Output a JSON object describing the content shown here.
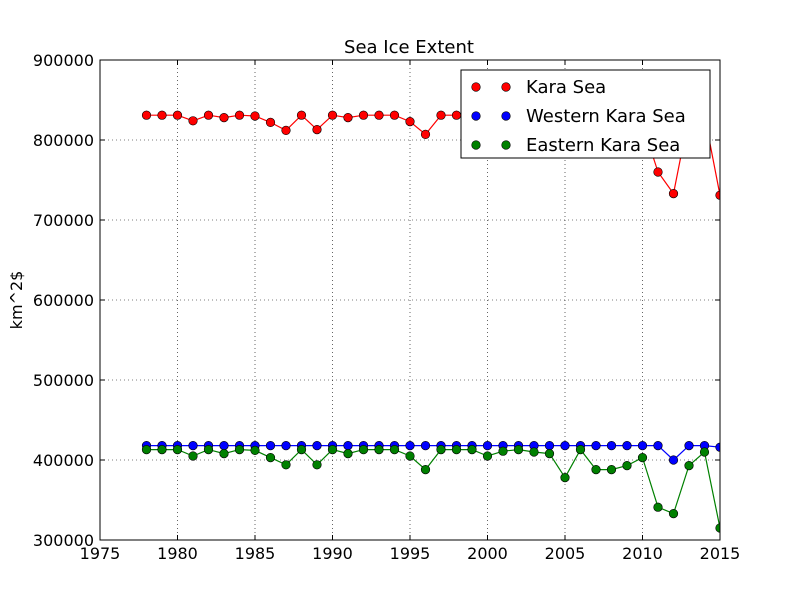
{
  "chart_data": {
    "type": "line",
    "title": "Sea Ice Extent",
    "xlabel": "",
    "ylabel": "km^2$",
    "xlim": [
      1975,
      2015
    ],
    "ylim": [
      300000,
      900000
    ],
    "xticks": [
      1975,
      1980,
      1985,
      1990,
      1995,
      2000,
      2005,
      2010,
      2015
    ],
    "yticks": [
      300000,
      400000,
      500000,
      600000,
      700000,
      800000,
      900000
    ],
    "grid": true,
    "legend_position": "upper-right",
    "x": [
      1978,
      1979,
      1980,
      1981,
      1982,
      1983,
      1984,
      1985,
      1986,
      1987,
      1988,
      1989,
      1990,
      1991,
      1992,
      1993,
      1994,
      1995,
      1996,
      1997,
      1998,
      1999,
      2000,
      2001,
      2002,
      2003,
      2004,
      2005,
      2006,
      2007,
      2008,
      2009,
      2010,
      2011,
      2012,
      2013,
      2014,
      2015
    ],
    "series": [
      {
        "name": "Kara Sea",
        "color": "#ff0000",
        "values": [
          831000,
          831000,
          831000,
          824000,
          831000,
          828000,
          831000,
          830000,
          822000,
          812000,
          831000,
          813000,
          831000,
          828000,
          831000,
          831000,
          831000,
          823000,
          807000,
          831000,
          831000,
          831000,
          831000,
          831000,
          831000,
          831000,
          831000,
          831000,
          831000,
          831000,
          831000,
          831000,
          820000,
          760000,
          733000,
          831000,
          831000,
          731000
        ]
      },
      {
        "name": "Western Kara Sea",
        "color": "#0000ff",
        "values": [
          418000,
          418000,
          418000,
          418000,
          418000,
          418000,
          418000,
          418000,
          418000,
          418000,
          418000,
          418000,
          418000,
          418000,
          418000,
          418000,
          418000,
          418000,
          418000,
          418000,
          418000,
          418000,
          418000,
          418000,
          418000,
          418000,
          418000,
          418000,
          418000,
          418000,
          418000,
          418000,
          418000,
          418000,
          400000,
          418000,
          418000,
          416000
        ]
      },
      {
        "name": "Eastern Kara Sea",
        "color": "#008000",
        "values": [
          413000,
          413000,
          413000,
          405000,
          413000,
          408000,
          413000,
          412000,
          403000,
          394000,
          413000,
          394000,
          413000,
          408000,
          413000,
          413000,
          413000,
          405000,
          388000,
          413000,
          413000,
          413000,
          405000,
          411000,
          413000,
          410000,
          408000,
          378000,
          413000,
          388000,
          388000,
          393000,
          403000,
          341000,
          333000,
          393000,
          410000,
          315000
        ]
      }
    ]
  }
}
